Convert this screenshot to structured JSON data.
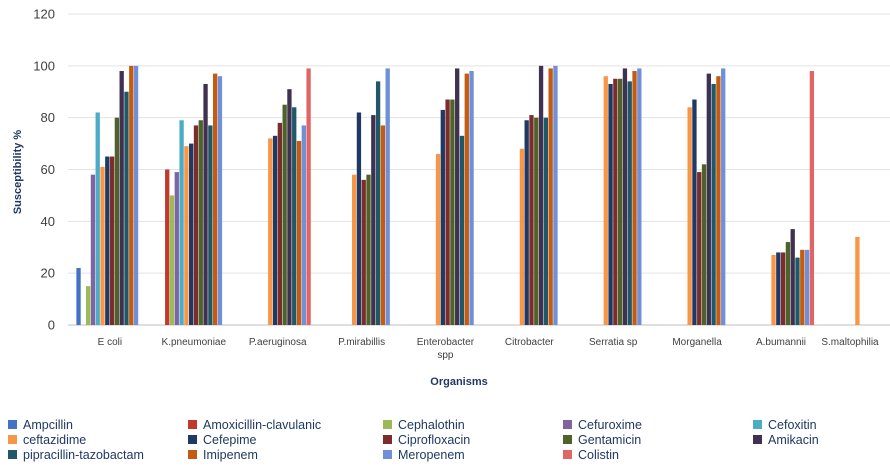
{
  "chart_data": {
    "type": "bar",
    "xlabel": "Organisms",
    "ylabel": "Susceptibility %",
    "ylim": [
      0,
      120
    ],
    "yticks": [
      "0",
      "20",
      "40",
      "60",
      "80",
      "100",
      "120"
    ],
    "grid": true,
    "legend_position": "bottom",
    "categories": [
      [
        "E coli"
      ],
      [
        "K.pneumoniae"
      ],
      [
        "P.aeruginosa"
      ],
      [
        "P.mirabillis"
      ],
      [
        "Enterobacter",
        "spp"
      ],
      [
        "Citrobacter"
      ],
      [
        "Serratia sp"
      ],
      [
        "Morganella"
      ],
      [
        "A.bumannii"
      ],
      [
        "S.maltophilia"
      ]
    ],
    "series": [
      {
        "name": "Ampcillin",
        "color": "#4472c4",
        "values": [
          22,
          null,
          null,
          null,
          null,
          null,
          null,
          null,
          null,
          null
        ]
      },
      {
        "name": "Amoxicillin-clavulanic",
        "color": "#c0392b",
        "values": [
          null,
          60,
          null,
          null,
          null,
          null,
          null,
          null,
          null,
          null
        ]
      },
      {
        "name": "Cephalothin",
        "color": "#9bbb59",
        "values": [
          15,
          50,
          null,
          null,
          null,
          null,
          null,
          null,
          null,
          null
        ]
      },
      {
        "name": "Cefuroxime",
        "color": "#8064a2",
        "values": [
          58,
          59,
          null,
          null,
          null,
          null,
          null,
          null,
          null,
          null
        ]
      },
      {
        "name": "Cefoxitin",
        "color": "#4bacc6",
        "values": [
          82,
          79,
          null,
          null,
          null,
          null,
          null,
          null,
          null,
          null
        ]
      },
      {
        "name": "ceftazidime",
        "color": "#f79646",
        "values": [
          61,
          69,
          72,
          58,
          66,
          68,
          96,
          84,
          27,
          34
        ]
      },
      {
        "name": "Cefepime",
        "color": "#1f3864",
        "values": [
          65,
          70,
          73,
          82,
          83,
          79,
          93,
          87,
          28,
          null
        ]
      },
      {
        "name": "Ciprofloxacin",
        "color": "#7b2c2c",
        "values": [
          65,
          77,
          78,
          56,
          87,
          81,
          95,
          59,
          28,
          null
        ]
      },
      {
        "name": "Gentamicin",
        "color": "#4f6228",
        "values": [
          80,
          79,
          85,
          58,
          87,
          80,
          95,
          62,
          32,
          null
        ]
      },
      {
        "name": "Amikacin",
        "color": "#3f3151",
        "values": [
          98,
          93,
          91,
          81,
          99,
          100,
          99,
          97,
          37,
          null
        ]
      },
      {
        "name": "pipracillin-tazobactam",
        "color": "#205867",
        "values": [
          90,
          77,
          84,
          94,
          73,
          80,
          94,
          93,
          26,
          null
        ]
      },
      {
        "name": "Imipenem",
        "color": "#c55a11",
        "values": [
          100,
          97,
          71,
          77,
          97,
          99,
          98,
          96,
          29,
          null
        ]
      },
      {
        "name": "Meropenem",
        "color": "#6f8fd8",
        "values": [
          100,
          96,
          77,
          99,
          98,
          100,
          99,
          99,
          29,
          null
        ]
      },
      {
        "name": "Colistin",
        "color": "#e06666",
        "values": [
          null,
          null,
          99,
          null,
          null,
          null,
          null,
          null,
          98,
          null
        ]
      }
    ]
  }
}
